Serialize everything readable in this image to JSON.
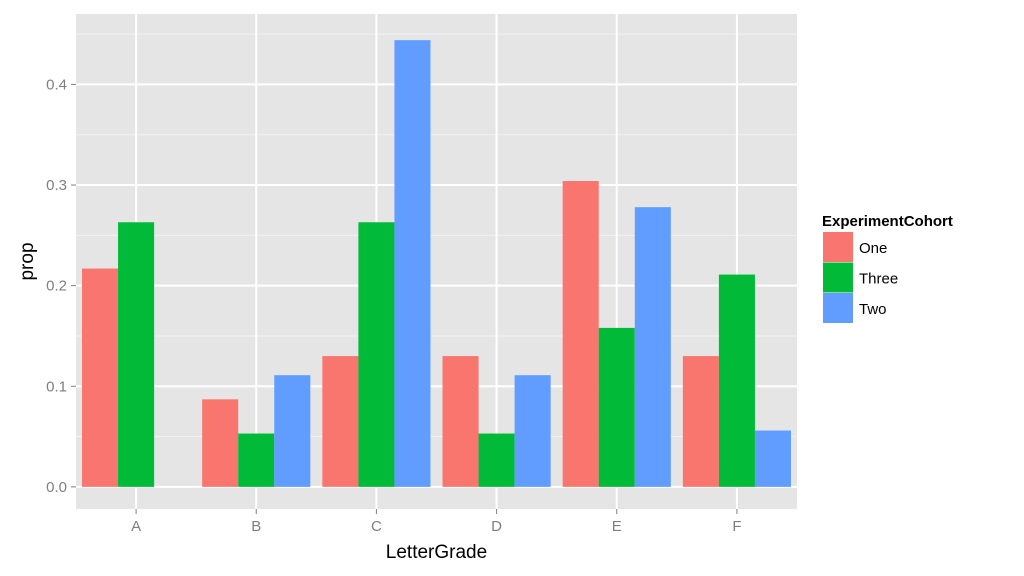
{
  "chart_data": {
    "type": "bar",
    "categories": [
      "A",
      "B",
      "C",
      "D",
      "E",
      "F"
    ],
    "series": [
      {
        "name": "One",
        "color": "#F8766D",
        "values": [
          0.217,
          0.087,
          0.13,
          0.13,
          0.304,
          0.13
        ]
      },
      {
        "name": "Three",
        "color": "#00BA38",
        "values": [
          0.263,
          0.053,
          0.263,
          0.053,
          0.158,
          0.211
        ]
      },
      {
        "name": "Two",
        "color": "#619CFF",
        "values": [
          0.0,
          0.111,
          0.444,
          0.111,
          0.278,
          0.056
        ]
      }
    ],
    "xlabel": "LetterGrade",
    "ylabel": "prop",
    "ylim": [
      -0.022,
      0.47
    ],
    "yticks": [
      "0.0",
      "0.1",
      "0.2",
      "0.3",
      "0.4"
    ],
    "grid": true,
    "legend": {
      "title": "ExperimentCohort",
      "position": "right"
    },
    "panel_color": "#E5E5E5"
  }
}
